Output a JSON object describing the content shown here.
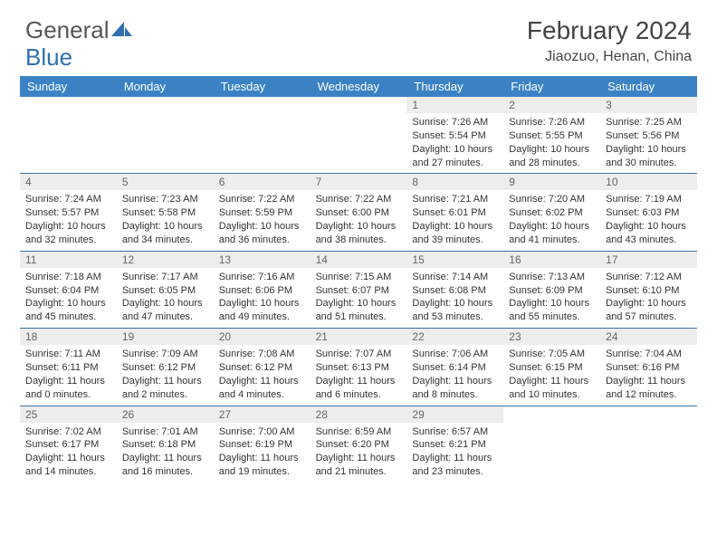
{
  "logo": {
    "text1": "General",
    "text2": "Blue",
    "color_text": "#666666",
    "color_blue": "#2f6fb0"
  },
  "title": "February 2024",
  "location": "Jiaozuo, Henan, China",
  "colors": {
    "header_bg": "#3b82c4",
    "header_text": "#ffffff",
    "daynum_bg": "#ededed",
    "daynum_text": "#666666",
    "rule": "#3b6fa0",
    "body_text": "#333333"
  },
  "font": {
    "family": "Arial",
    "title_size": 28,
    "location_size": 16,
    "dayname_size": 13,
    "body_size": 11
  },
  "daynames": [
    "Sunday",
    "Monday",
    "Tuesday",
    "Wednesday",
    "Thursday",
    "Friday",
    "Saturday"
  ],
  "weeks": [
    [
      {
        "empty": true
      },
      {
        "empty": true
      },
      {
        "empty": true
      },
      {
        "empty": true
      },
      {
        "n": "1",
        "sr": "Sunrise: 7:26 AM",
        "ss": "Sunset: 5:54 PM",
        "dl": "Daylight: 10 hours and 27 minutes."
      },
      {
        "n": "2",
        "sr": "Sunrise: 7:26 AM",
        "ss": "Sunset: 5:55 PM",
        "dl": "Daylight: 10 hours and 28 minutes."
      },
      {
        "n": "3",
        "sr": "Sunrise: 7:25 AM",
        "ss": "Sunset: 5:56 PM",
        "dl": "Daylight: 10 hours and 30 minutes."
      }
    ],
    [
      {
        "n": "4",
        "sr": "Sunrise: 7:24 AM",
        "ss": "Sunset: 5:57 PM",
        "dl": "Daylight: 10 hours and 32 minutes."
      },
      {
        "n": "5",
        "sr": "Sunrise: 7:23 AM",
        "ss": "Sunset: 5:58 PM",
        "dl": "Daylight: 10 hours and 34 minutes."
      },
      {
        "n": "6",
        "sr": "Sunrise: 7:22 AM",
        "ss": "Sunset: 5:59 PM",
        "dl": "Daylight: 10 hours and 36 minutes."
      },
      {
        "n": "7",
        "sr": "Sunrise: 7:22 AM",
        "ss": "Sunset: 6:00 PM",
        "dl": "Daylight: 10 hours and 38 minutes."
      },
      {
        "n": "8",
        "sr": "Sunrise: 7:21 AM",
        "ss": "Sunset: 6:01 PM",
        "dl": "Daylight: 10 hours and 39 minutes."
      },
      {
        "n": "9",
        "sr": "Sunrise: 7:20 AM",
        "ss": "Sunset: 6:02 PM",
        "dl": "Daylight: 10 hours and 41 minutes."
      },
      {
        "n": "10",
        "sr": "Sunrise: 7:19 AM",
        "ss": "Sunset: 6:03 PM",
        "dl": "Daylight: 10 hours and 43 minutes."
      }
    ],
    [
      {
        "n": "11",
        "sr": "Sunrise: 7:18 AM",
        "ss": "Sunset: 6:04 PM",
        "dl": "Daylight: 10 hours and 45 minutes."
      },
      {
        "n": "12",
        "sr": "Sunrise: 7:17 AM",
        "ss": "Sunset: 6:05 PM",
        "dl": "Daylight: 10 hours and 47 minutes."
      },
      {
        "n": "13",
        "sr": "Sunrise: 7:16 AM",
        "ss": "Sunset: 6:06 PM",
        "dl": "Daylight: 10 hours and 49 minutes."
      },
      {
        "n": "14",
        "sr": "Sunrise: 7:15 AM",
        "ss": "Sunset: 6:07 PM",
        "dl": "Daylight: 10 hours and 51 minutes."
      },
      {
        "n": "15",
        "sr": "Sunrise: 7:14 AM",
        "ss": "Sunset: 6:08 PM",
        "dl": "Daylight: 10 hours and 53 minutes."
      },
      {
        "n": "16",
        "sr": "Sunrise: 7:13 AM",
        "ss": "Sunset: 6:09 PM",
        "dl": "Daylight: 10 hours and 55 minutes."
      },
      {
        "n": "17",
        "sr": "Sunrise: 7:12 AM",
        "ss": "Sunset: 6:10 PM",
        "dl": "Daylight: 10 hours and 57 minutes."
      }
    ],
    [
      {
        "n": "18",
        "sr": "Sunrise: 7:11 AM",
        "ss": "Sunset: 6:11 PM",
        "dl": "Daylight: 11 hours and 0 minutes."
      },
      {
        "n": "19",
        "sr": "Sunrise: 7:09 AM",
        "ss": "Sunset: 6:12 PM",
        "dl": "Daylight: 11 hours and 2 minutes."
      },
      {
        "n": "20",
        "sr": "Sunrise: 7:08 AM",
        "ss": "Sunset: 6:12 PM",
        "dl": "Daylight: 11 hours and 4 minutes."
      },
      {
        "n": "21",
        "sr": "Sunrise: 7:07 AM",
        "ss": "Sunset: 6:13 PM",
        "dl": "Daylight: 11 hours and 6 minutes."
      },
      {
        "n": "22",
        "sr": "Sunrise: 7:06 AM",
        "ss": "Sunset: 6:14 PM",
        "dl": "Daylight: 11 hours and 8 minutes."
      },
      {
        "n": "23",
        "sr": "Sunrise: 7:05 AM",
        "ss": "Sunset: 6:15 PM",
        "dl": "Daylight: 11 hours and 10 minutes."
      },
      {
        "n": "24",
        "sr": "Sunrise: 7:04 AM",
        "ss": "Sunset: 6:16 PM",
        "dl": "Daylight: 11 hours and 12 minutes."
      }
    ],
    [
      {
        "n": "25",
        "sr": "Sunrise: 7:02 AM",
        "ss": "Sunset: 6:17 PM",
        "dl": "Daylight: 11 hours and 14 minutes."
      },
      {
        "n": "26",
        "sr": "Sunrise: 7:01 AM",
        "ss": "Sunset: 6:18 PM",
        "dl": "Daylight: 11 hours and 16 minutes."
      },
      {
        "n": "27",
        "sr": "Sunrise: 7:00 AM",
        "ss": "Sunset: 6:19 PM",
        "dl": "Daylight: 11 hours and 19 minutes."
      },
      {
        "n": "28",
        "sr": "Sunrise: 6:59 AM",
        "ss": "Sunset: 6:20 PM",
        "dl": "Daylight: 11 hours and 21 minutes."
      },
      {
        "n": "29",
        "sr": "Sunrise: 6:57 AM",
        "ss": "Sunset: 6:21 PM",
        "dl": "Daylight: 11 hours and 23 minutes."
      },
      {
        "empty": true
      },
      {
        "empty": true
      }
    ]
  ]
}
